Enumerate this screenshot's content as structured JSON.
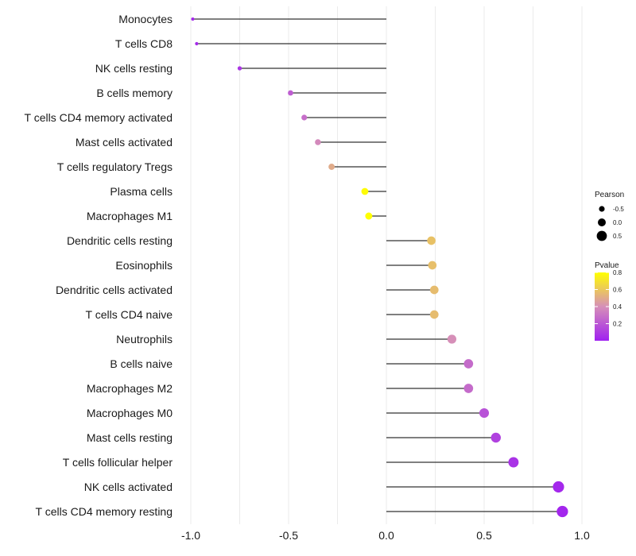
{
  "chart_data": {
    "type": "lollipop",
    "title": "",
    "xlabel": "",
    "ylabel": "",
    "xlim": [
      -1.0,
      1.0
    ],
    "x_ticks": [
      -1.0,
      -0.5,
      0.0,
      0.5,
      1.0
    ],
    "x_tick_labels": [
      "-1.0",
      "-0.5",
      "0.0",
      "0.5",
      "1.0"
    ],
    "grid": true,
    "categories": [
      "Monocytes",
      "T cells CD8",
      "NK cells resting",
      "B cells memory",
      "T cells CD4 memory activated",
      "Mast cells activated",
      "T cells regulatory  Tregs",
      "Plasma cells",
      "Macrophages M1",
      "Dendritic cells resting",
      "Eosinophils",
      "Dendritic cells activated",
      "T cells CD4 naive",
      "Neutrophils",
      "B cells naive",
      "Macrophages M2",
      "Macrophages M0",
      "Mast cells resting",
      "T cells follicular helper",
      "NK cells activated",
      "T cells CD4 memory resting"
    ],
    "pearson": [
      -0.99,
      -0.97,
      -0.75,
      -0.49,
      -0.42,
      -0.35,
      -0.28,
      -0.11,
      -0.09,
      0.23,
      0.235,
      0.245,
      0.245,
      0.335,
      0.42,
      0.42,
      0.5,
      0.56,
      0.65,
      0.88,
      0.9
    ],
    "pvalue": [
      0.03,
      0.04,
      0.08,
      0.22,
      0.28,
      0.38,
      0.5,
      0.79,
      0.8,
      0.58,
      0.57,
      0.56,
      0.56,
      0.4,
      0.27,
      0.27,
      0.18,
      0.12,
      0.07,
      0.03,
      0.02
    ],
    "legend": {
      "position": "right",
      "size_title": "Pearson",
      "size_entries": [
        "-0.5",
        "0.0",
        "0.5"
      ],
      "size_values": [
        -0.5,
        0.0,
        0.5
      ],
      "color_title": "Pvalue",
      "color_ticks": [
        "0.8",
        "0.6",
        "0.4",
        "0.2"
      ],
      "color_tick_values": [
        0.8,
        0.6,
        0.4,
        0.2
      ],
      "color_range": [
        0.0,
        0.8
      ],
      "colors": [
        "#a020f0",
        "#d68fb8",
        "#ffff00"
      ]
    },
    "stem_color": "#333333"
  }
}
